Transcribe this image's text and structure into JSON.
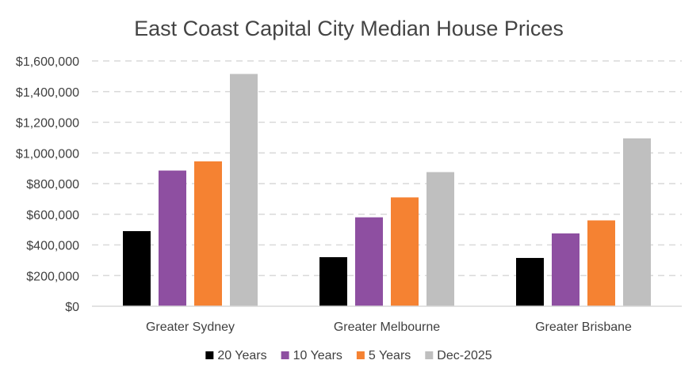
{
  "chart_data": {
    "type": "bar",
    "title": "East Coast Capital City Median House Prices",
    "xlabel": "",
    "ylabel": "",
    "categories": [
      "Greater Sydney",
      "Greater Melbourne",
      "Greater Brisbane"
    ],
    "series": [
      {
        "name": "20 Years",
        "color": "#000000",
        "values": [
          490000,
          320000,
          315000
        ]
      },
      {
        "name": "10 Years",
        "color": "#8E4FA1",
        "values": [
          885000,
          580000,
          475000
        ]
      },
      {
        "name": "5 Years",
        "color": "#F58232",
        "values": [
          945000,
          710000,
          560000
        ]
      },
      {
        "name": "Dec-2025",
        "color": "#BFBFBF",
        "values": [
          1515000,
          875000,
          1095000
        ]
      }
    ],
    "ylim": [
      0,
      1600000
    ],
    "y_ticks": [
      0,
      200000,
      400000,
      600000,
      800000,
      1000000,
      1200000,
      1400000,
      1600000
    ],
    "y_tick_labels": [
      "$0",
      "$200,000",
      "$400,000",
      "$600,000",
      "$800,000",
      "$1,000,000",
      "$1,200,000",
      "$1,400,000",
      "$1,600,000"
    ],
    "grid": true,
    "legend_position": "bottom"
  }
}
